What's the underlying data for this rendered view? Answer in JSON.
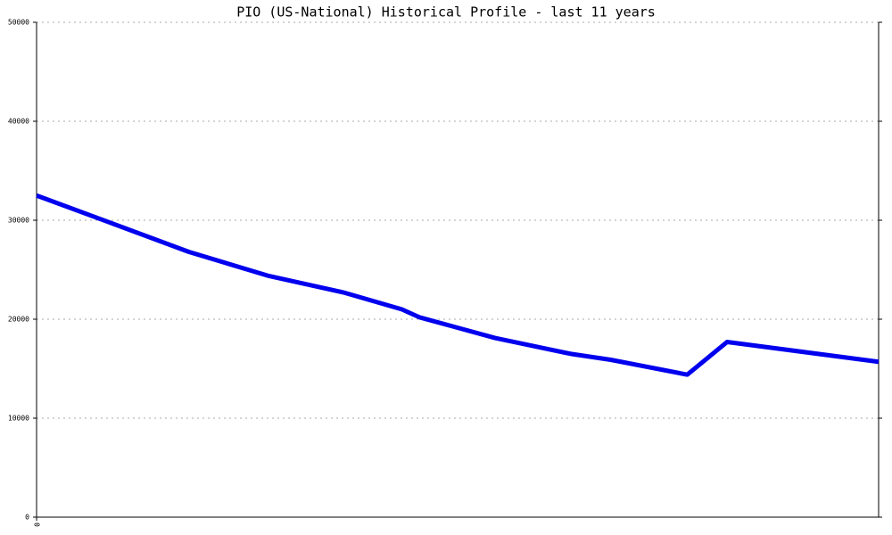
{
  "chart_data": {
    "type": "line",
    "title": "PIO (US-National) Historical Profile - last 11 years",
    "x": [
      0,
      0.98,
      1.99,
      3.02,
      4.01,
      4.77,
      5.0,
      5.99,
      6.98,
      7.5,
      8.5,
      9.02,
      11
    ],
    "series": [
      {
        "name": "PIO",
        "color": "#0000ee",
        "values": [
          32500,
          29700,
          26800,
          24400,
          22700,
          21000,
          20200,
          18100,
          16500,
          15900,
          14400,
          17700,
          15700
        ]
      }
    ],
    "xlim": [
      0,
      11
    ],
    "xticks": [
      0
    ],
    "ylim": [
      0,
      50000
    ],
    "yticks": [
      0,
      10000,
      20000,
      30000,
      40000,
      50000
    ],
    "grid": true
  }
}
